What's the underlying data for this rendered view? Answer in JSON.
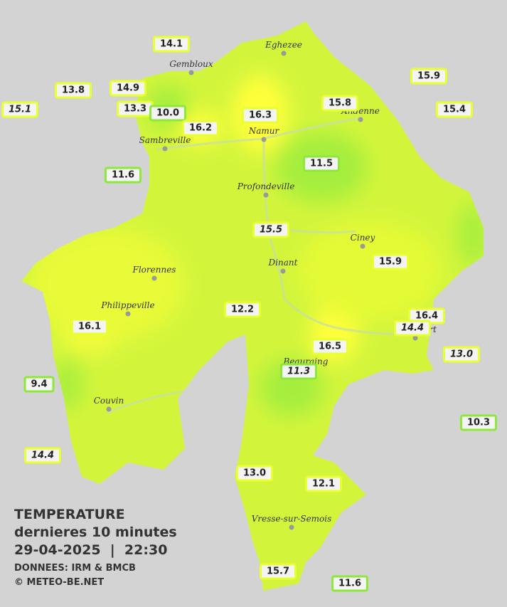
{
  "header": {
    "title": "TEMPERATURE",
    "subtitle": "dernieres 10 minutes",
    "datetime": "29-04-2025  |  22:30",
    "source": "DONNEES: IRM & BMCB",
    "copyright": "© METEO-BE.NET"
  },
  "towns": [
    "Eghezee",
    "Gembloux",
    "Andenne",
    "Namur",
    "Sambreville",
    "Profondeville",
    "Ciney",
    "Dinant",
    "Florennes",
    "Philippeville",
    "Rochefort",
    "Beauraing",
    "Couvin",
    "Vresse-sur-Semois"
  ],
  "stations": [
    "14.1",
    "13.8",
    "14.9",
    "15.1",
    "13.3",
    "10.0",
    "16.2",
    "16.3",
    "15.8",
    "15.9",
    "15.4",
    "11.6",
    "11.5",
    "15.5",
    "15.9",
    "12.2",
    "16.4",
    "14.4",
    "16.1",
    "16.5",
    "13.0",
    "11.3",
    "9.4",
    "10.3",
    "14.4",
    "13.0",
    "12.1",
    "15.7",
    "11.6"
  ]
}
